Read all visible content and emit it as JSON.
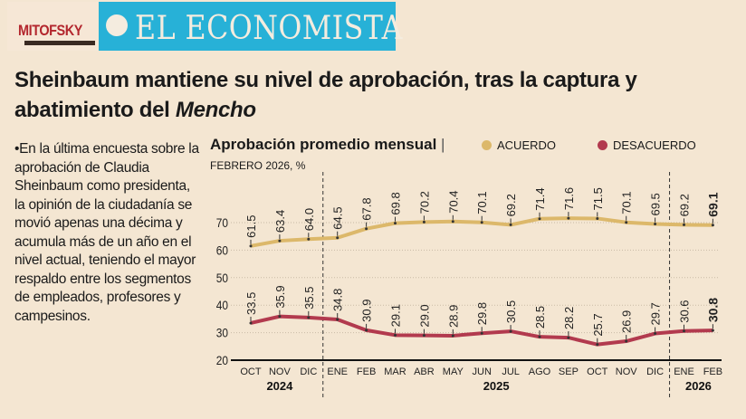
{
  "header": {
    "mitofsky_logo": "MITOFSKY",
    "economista_logo": "EL ECONOMISTA"
  },
  "headline": {
    "line1": "Sheinbaum mantiene su nivel de aprobación, tras la captura y",
    "line2_prefix": "abatimiento del ",
    "line2_italic": "Mencho"
  },
  "body_text": "•En la última encuesta sobre la aprobación de Claudia Sheinbaum como presidenta, la opinión de la ciudadanía se movió apenas una décima y acumula más de un año en el nivel actual, teniendo el mayor respaldo entre los segmentos de empleados, profesores y campesinos.",
  "chart_data": {
    "type": "line",
    "title": "Aprobación promedio mensual",
    "subtitle": "FEBRERO 2026, %",
    "categories": [
      "OCT",
      "NOV",
      "DIC",
      "ENE",
      "FEB",
      "MAR",
      "ABR",
      "MAY",
      "JUN",
      "JUL",
      "AGO",
      "SEP",
      "OCT",
      "NOV",
      "DIC",
      "ENE",
      "FEB"
    ],
    "year_groups": [
      {
        "label": "2024",
        "from": 0,
        "to": 2
      },
      {
        "label": "2025",
        "from": 3,
        "to": 14
      },
      {
        "label": "2026",
        "from": 15,
        "to": 16
      }
    ],
    "series": [
      {
        "name": "ACUERDO",
        "color": "#dcb86a",
        "values": [
          61.5,
          63.4,
          64.0,
          64.5,
          67.8,
          69.8,
          70.2,
          70.4,
          70.1,
          69.2,
          71.4,
          71.6,
          71.5,
          70.1,
          69.5,
          69.2,
          69.1
        ]
      },
      {
        "name": "DESACUERDO",
        "color": "#b23a4e",
        "values": [
          33.5,
          35.9,
          35.5,
          34.8,
          30.9,
          29.1,
          29.0,
          28.9,
          29.8,
          30.5,
          28.5,
          28.2,
          25.7,
          26.9,
          29.7,
          30.6,
          30.8
        ]
      }
    ],
    "yticks": [
      20,
      30,
      40,
      50,
      60,
      70
    ],
    "ylim": [
      20,
      75
    ],
    "grid": true,
    "legend": "top"
  }
}
